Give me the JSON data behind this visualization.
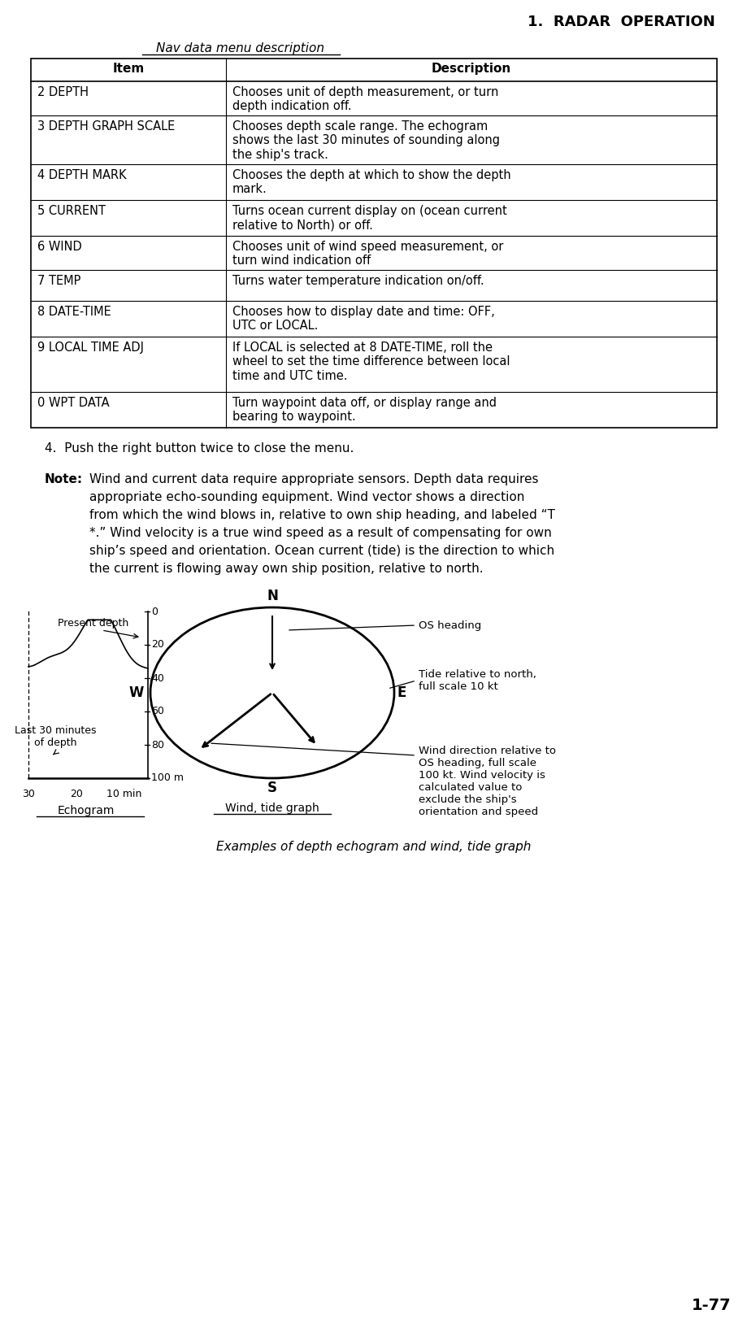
{
  "title": "1.  RADAR  OPERATION",
  "subtitle": "Nav data menu description",
  "table_headers": [
    "Item",
    "Description"
  ],
  "table_rows": [
    [
      "2 DEPTH",
      "Chooses unit of depth measurement, or turn\ndepth indication off."
    ],
    [
      "3 DEPTH GRAPH SCALE",
      "Chooses depth scale range. The echogram\nshows the last 30 minutes of sounding along\nthe ship's track."
    ],
    [
      "4 DEPTH MARK",
      "Chooses the depth at which to show the depth\nmark."
    ],
    [
      "5 CURRENT",
      "Turns ocean current display on (ocean current\nrelative to North) or off."
    ],
    [
      "6 WIND",
      "Chooses unit of wind speed measurement, or\nturn wind indication off"
    ],
    [
      "7 TEMP",
      "Turns water temperature indication on/off."
    ],
    [
      "8 DATE-TIME",
      "Chooses how to display date and time: OFF,\nUTC or LOCAL."
    ],
    [
      "9 LOCAL TIME ADJ",
      "If LOCAL is selected at 8 DATE-TIME, roll the\nwheel to set the time difference between local\ntime and UTC time."
    ],
    [
      "0 WPT DATA",
      "Turn waypoint data off, or display range and\nbearing to waypoint."
    ]
  ],
  "step4_text": "4.  Push the right button twice to close the menu.",
  "note_label": "Note:",
  "note_text": "Wind and current data require appropriate sensors. Depth data requires\nappropriate echo-sounding equipment. Wind vector shows a direction\nfrom which the wind blows in, relative to own ship heading, and labeled “T\n*.” Wind velocity is a true wind speed as a result of compensating for own\nship’s speed and orientation. Ocean current (tide) is the direction to which\nthe current is flowing away own ship position, relative to north.",
  "caption": "Examples of depth echogram and wind, tide graph",
  "page_number": "1-77",
  "bg_color": "#ffffff",
  "text_color": "#000000"
}
